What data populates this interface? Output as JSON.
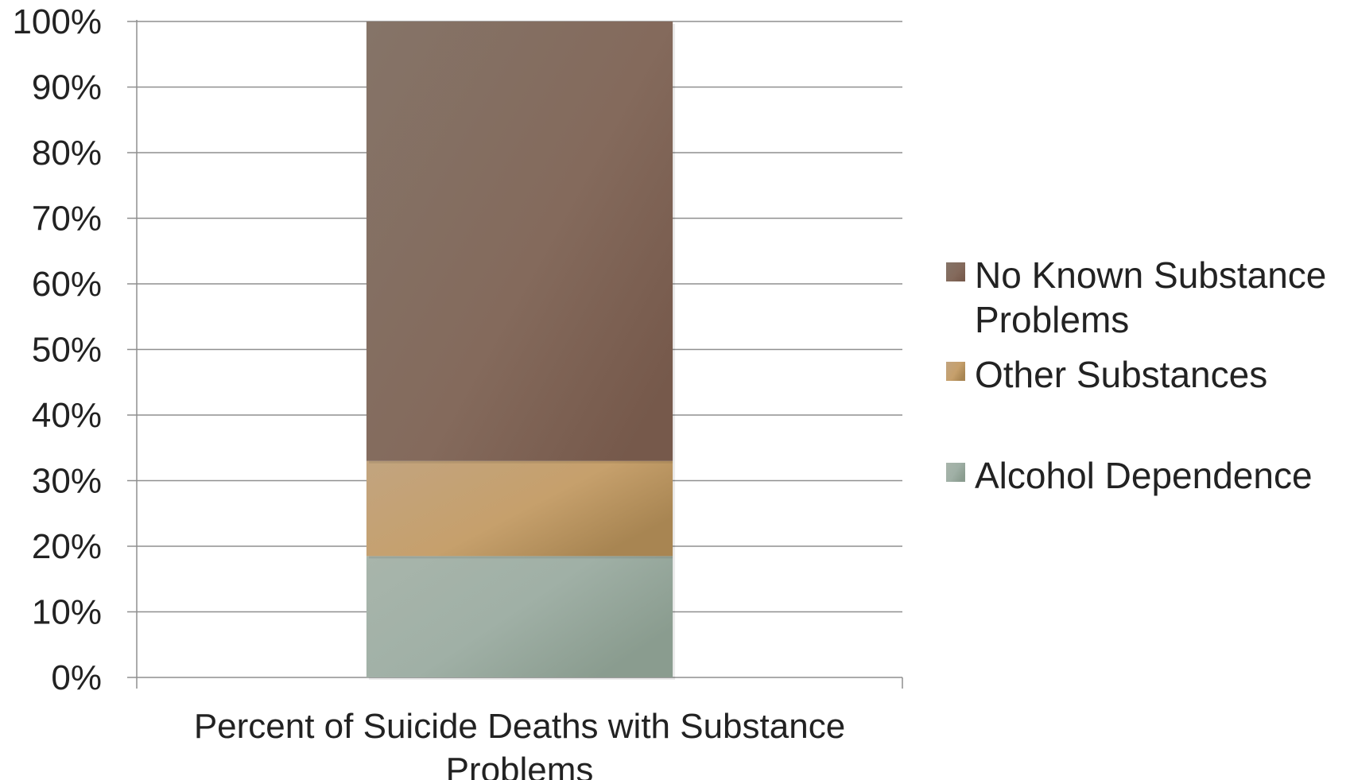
{
  "chart_data": {
    "type": "bar",
    "stacked": true,
    "categories": [
      "Percent of Suicide Deaths with Substance Problems"
    ],
    "series": [
      {
        "name": "Alcohol Dependence",
        "values": [
          18.5
        ],
        "color": "#9aaba0"
      },
      {
        "name": "Other Substances",
        "values": [
          14.5
        ],
        "color": "#bf9a6c"
      },
      {
        "name": "No Known Substance Problems",
        "values": [
          67
        ],
        "color": "#836d60"
      }
    ],
    "y_ticks": [
      "0%",
      "10%",
      "20%",
      "30%",
      "40%",
      "50%",
      "60%",
      "70%",
      "80%",
      "90%",
      "100%"
    ],
    "ylim": [
      0,
      100
    ],
    "grid": true,
    "legend_position": "right",
    "legend_order": [
      "No Known Substance Problems",
      "Other Substances",
      "Alcohol Dependence"
    ]
  }
}
